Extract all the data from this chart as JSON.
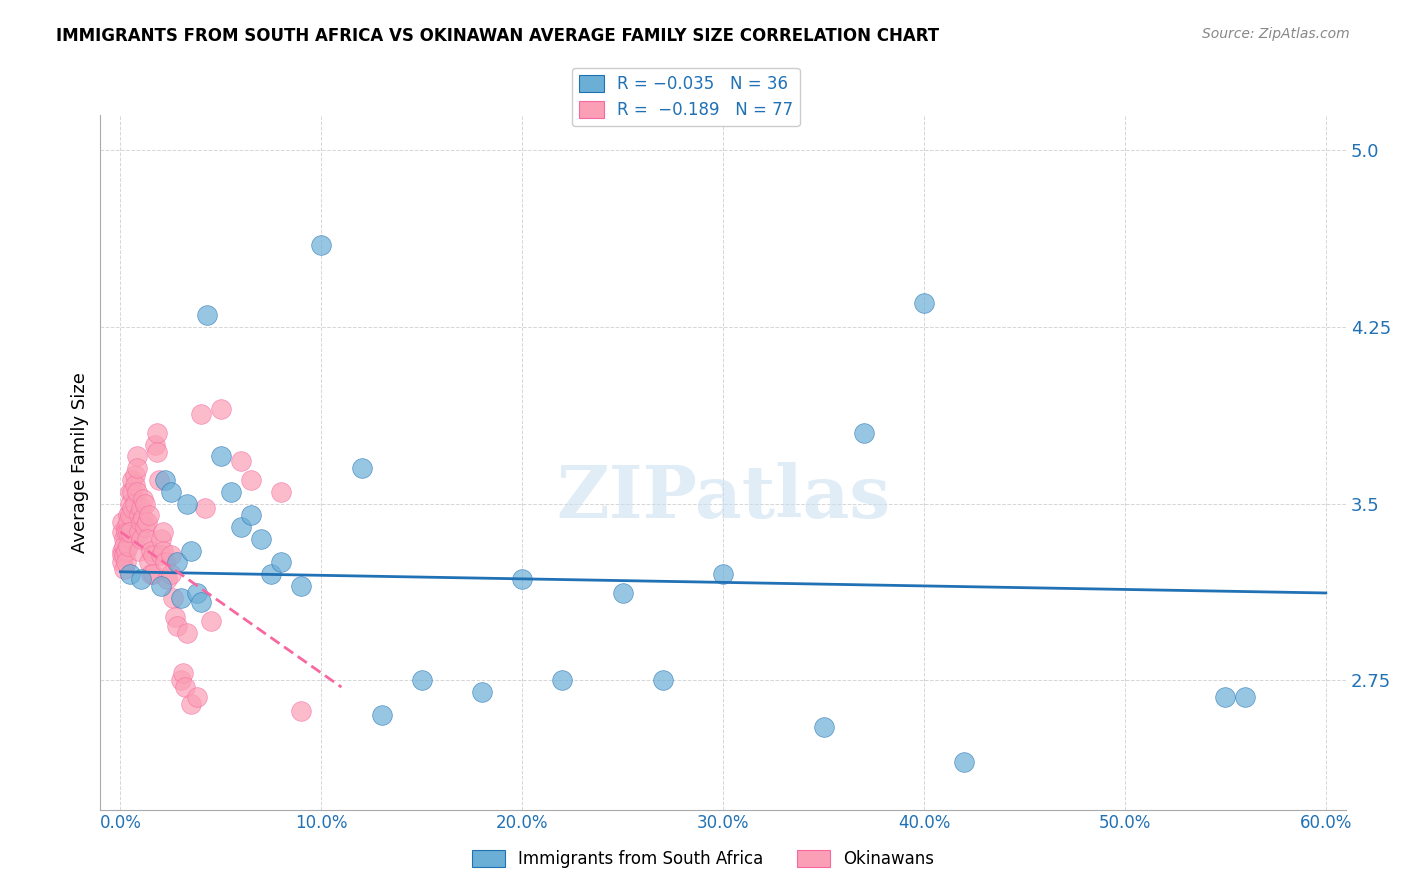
{
  "title": "IMMIGRANTS FROM SOUTH AFRICA VS OKINAWAN AVERAGE FAMILY SIZE CORRELATION CHART",
  "source": "Source: ZipAtlas.com",
  "xlabel": "",
  "ylabel": "Average Family Size",
  "watermark": "ZIPatlas",
  "xlim": [
    0.0,
    0.6
  ],
  "ylim": [
    2.2,
    5.15
  ],
  "yticks": [
    2.75,
    3.5,
    4.25,
    5.0
  ],
  "xticks": [
    0.0,
    0.1,
    0.2,
    0.3,
    0.4,
    0.5,
    0.6
  ],
  "xtick_labels": [
    "0.0%",
    "10.0%",
    "20.0%",
    "30.0%",
    "40.0%",
    "50.0%",
    "60.0%"
  ],
  "blue_color": "#6baed6",
  "pink_color": "#fa9fb5",
  "blue_line_color": "#2171b5",
  "pink_line_color": "#f768a1",
  "legend_R_blue": "R = −0.035",
  "legend_N_blue": "N = 36",
  "legend_R_pink": "R =  −0.189",
  "legend_N_pink": "N = 77",
  "blue_x": [
    0.005,
    0.01,
    0.02,
    0.022,
    0.025,
    0.028,
    0.03,
    0.033,
    0.035,
    0.038,
    0.04,
    0.043,
    0.05,
    0.055,
    0.06,
    0.065,
    0.07,
    0.075,
    0.08,
    0.09,
    0.1,
    0.12,
    0.13,
    0.15,
    0.18,
    0.2,
    0.22,
    0.25,
    0.27,
    0.3,
    0.35,
    0.37,
    0.4,
    0.42,
    0.55,
    0.56
  ],
  "blue_y": [
    3.2,
    3.18,
    3.15,
    3.6,
    3.55,
    3.25,
    3.1,
    3.5,
    3.3,
    3.12,
    3.08,
    4.3,
    3.7,
    3.55,
    3.4,
    3.45,
    3.35,
    3.2,
    3.25,
    3.15,
    4.6,
    3.65,
    2.6,
    2.75,
    2.7,
    3.18,
    2.75,
    3.12,
    2.75,
    3.2,
    2.55,
    3.8,
    4.35,
    2.4,
    2.68,
    2.68
  ],
  "pink_x": [
    0.001,
    0.001,
    0.001,
    0.001,
    0.001,
    0.002,
    0.002,
    0.002,
    0.002,
    0.003,
    0.003,
    0.003,
    0.003,
    0.004,
    0.004,
    0.004,
    0.004,
    0.005,
    0.005,
    0.005,
    0.005,
    0.006,
    0.006,
    0.006,
    0.007,
    0.007,
    0.007,
    0.008,
    0.008,
    0.008,
    0.009,
    0.009,
    0.009,
    0.01,
    0.01,
    0.01,
    0.011,
    0.011,
    0.012,
    0.012,
    0.013,
    0.013,
    0.014,
    0.014,
    0.015,
    0.015,
    0.016,
    0.016,
    0.017,
    0.018,
    0.018,
    0.019,
    0.02,
    0.02,
    0.021,
    0.021,
    0.022,
    0.023,
    0.025,
    0.025,
    0.026,
    0.027,
    0.028,
    0.03,
    0.031,
    0.032,
    0.033,
    0.035,
    0.038,
    0.04,
    0.042,
    0.045,
    0.05,
    0.06,
    0.065,
    0.08,
    0.09
  ],
  "pink_y": [
    3.38,
    3.42,
    3.3,
    3.28,
    3.25,
    3.35,
    3.32,
    3.28,
    3.22,
    3.4,
    3.38,
    3.3,
    3.25,
    3.45,
    3.42,
    3.38,
    3.32,
    3.55,
    3.5,
    3.45,
    3.38,
    3.6,
    3.55,
    3.48,
    3.62,
    3.58,
    3.5,
    3.7,
    3.65,
    3.55,
    3.45,
    3.38,
    3.3,
    3.48,
    3.42,
    3.35,
    3.52,
    3.44,
    3.5,
    3.4,
    3.42,
    3.35,
    3.25,
    3.45,
    3.2,
    3.3,
    3.28,
    3.2,
    3.75,
    3.8,
    3.72,
    3.6,
    3.35,
    3.28,
    3.38,
    3.3,
    3.25,
    3.18,
    3.28,
    3.2,
    3.1,
    3.02,
    2.98,
    2.75,
    2.78,
    2.72,
    2.95,
    2.65,
    2.68,
    3.88,
    3.48,
    3.0,
    3.9,
    3.68,
    3.6,
    3.55,
    2.62
  ]
}
